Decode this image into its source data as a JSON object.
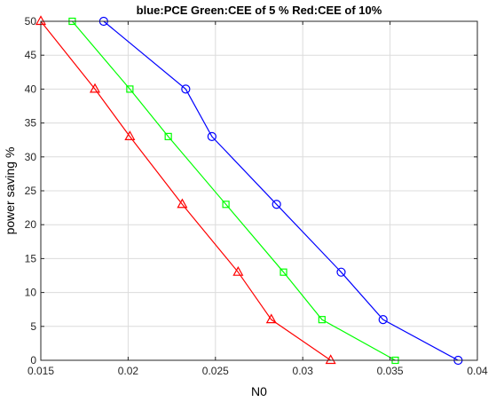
{
  "chart_data": {
    "type": "line",
    "title": "blue:PCE Green:CEE of 5 %  Red:CEE of 10%",
    "xlabel": "N0",
    "ylabel": "power saving %",
    "xlim": [
      0.015,
      0.04
    ],
    "ylim": [
      0,
      50
    ],
    "xticks": [
      0.015,
      0.02,
      0.025,
      0.03,
      0.035,
      0.04
    ],
    "xtick_labels": [
      "0.015",
      "0.02",
      "0.025",
      "0.03",
      "0.035",
      "0.04"
    ],
    "yticks": [
      0,
      5,
      10,
      15,
      20,
      25,
      30,
      35,
      40,
      45,
      50
    ],
    "ytick_labels": [
      "0",
      "5",
      "10",
      "15",
      "20",
      "25",
      "30",
      "35",
      "40",
      "45",
      "50"
    ],
    "grid": true,
    "series": [
      {
        "color": "#0000ff",
        "marker": "circle",
        "x": [
          0.0186,
          0.0233,
          0.0248,
          0.0285,
          0.0322,
          0.0346,
          0.0389
        ],
        "y": [
          50,
          40,
          33,
          23,
          13,
          6,
          0
        ]
      },
      {
        "color": "#00ff00",
        "marker": "square",
        "x": [
          0.0168,
          0.0201,
          0.0223,
          0.0256,
          0.0289,
          0.0311,
          0.0353
        ],
        "y": [
          50,
          40,
          33,
          23,
          13,
          6,
          0
        ]
      },
      {
        "color": "#ff0000",
        "marker": "triangle",
        "x": [
          0.015,
          0.0181,
          0.0201,
          0.0231,
          0.0263,
          0.0282,
          0.0316
        ],
        "y": [
          50,
          40,
          33,
          23,
          13,
          6,
          0
        ]
      }
    ]
  }
}
